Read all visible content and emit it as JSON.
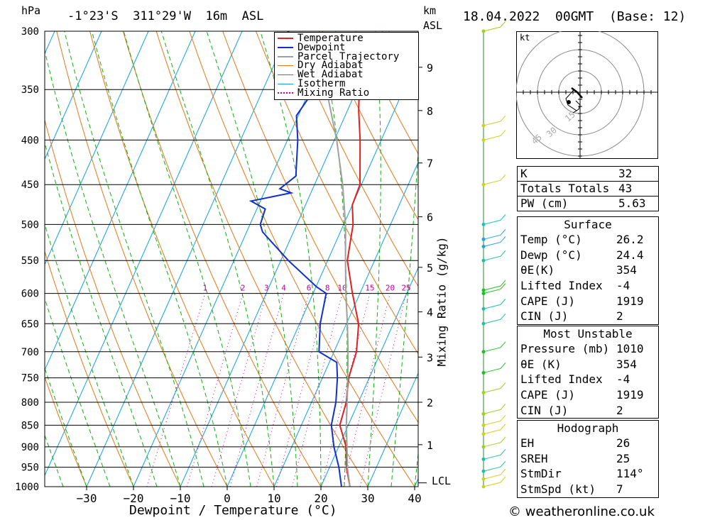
{
  "header": {
    "hpa_label": "hPa",
    "location": "-1°23'S  311°29'W  16m  ASL",
    "km_label": "km",
    "asl_label": "ASL",
    "date": "18.04.2022  00GMT  (Base: 12)"
  },
  "legend": [
    "Temperature",
    "Dewpoint",
    "Parcel Trajectory",
    "Dry Adiabat",
    "Wet Adiabat",
    "Isotherm",
    "Mixing Ratio"
  ],
  "colors": {
    "temperature": "#e02020",
    "dewpoint": "#1030d0",
    "parcel": "#a0a0a0",
    "dry_adiabat": "#e07818",
    "wet_adiabat": "#10b010",
    "isotherm": "#10a0e0",
    "mixing_ratio": "#c000a0"
  },
  "chart_data": {
    "type": "line",
    "title": "",
    "xlabel": "Dewpoint / Temperature (°C)",
    "ylabel": "hPa",
    "right_label": "Mixing Ratio (g/kg)",
    "xlim": [
      -40,
      40
    ],
    "ylim": [
      1000,
      300
    ],
    "pressure_ticks": [
      "300",
      "350",
      "400",
      "450",
      "500",
      "550",
      "600",
      "650",
      "700",
      "750",
      "800",
      "850",
      "900",
      "950",
      "1000"
    ],
    "temperature_ticks": [
      "-30",
      "-20",
      "-10",
      "0",
      "10",
      "20",
      "30",
      "40"
    ],
    "km_ticks": [
      {
        "label": "9",
        "p": 330
      },
      {
        "label": "8",
        "p": 370
      },
      {
        "label": "7",
        "p": 425
      },
      {
        "label": "6",
        "p": 490
      },
      {
        "label": "5",
        "p": 560
      },
      {
        "label": "4",
        "p": 630
      },
      {
        "label": "3",
        "p": 710
      },
      {
        "label": "2",
        "p": 800
      },
      {
        "label": "1",
        "p": 895
      }
    ],
    "lcl_label": "LCL",
    "lcl_pressure": 990,
    "mixing_ratio_labels": [
      "1",
      "2",
      "3",
      "4",
      "6",
      "8",
      "10",
      "15",
      "20",
      "25"
    ],
    "series": [
      {
        "name": "Temperature",
        "points": [
          [
            1000,
            26.2
          ],
          [
            950,
            23.6
          ],
          [
            900,
            21.6
          ],
          [
            850,
            18.2
          ],
          [
            800,
            17.4
          ],
          [
            750,
            15.6
          ],
          [
            700,
            14.8
          ],
          [
            650,
            12.6
          ],
          [
            600,
            8.4
          ],
          [
            550,
            4.2
          ],
          [
            500,
            2.0
          ],
          [
            475,
            0.0
          ],
          [
            450,
            -0.3
          ],
          [
            400,
            -4.5
          ],
          [
            370,
            -7.6
          ],
          [
            355,
            -9.0
          ]
        ]
      },
      {
        "name": "Dewpoint",
        "points": [
          [
            1000,
            24.4
          ],
          [
            950,
            22.0
          ],
          [
            900,
            19.0
          ],
          [
            850,
            16.4
          ],
          [
            800,
            15.2
          ],
          [
            750,
            13.2
          ],
          [
            720,
            11.6
          ],
          [
            700,
            6.8
          ],
          [
            650,
            4.4
          ],
          [
            600,
            2.8
          ],
          [
            590,
            0.2
          ],
          [
            550,
            -8.4
          ],
          [
            510,
            -16.6
          ],
          [
            500,
            -17.8
          ],
          [
            480,
            -18.2
          ],
          [
            470,
            -22.0
          ],
          [
            460,
            -14.2
          ],
          [
            455,
            -17.0
          ],
          [
            440,
            -14.8
          ],
          [
            400,
            -17.8
          ],
          [
            375,
            -20.4
          ],
          [
            360,
            -19.6
          ],
          [
            345,
            -24.2
          ],
          [
            330,
            -27.8
          ],
          [
            320,
            -25.6
          ],
          [
            310,
            -29.2
          ],
          [
            300,
            -30.2
          ]
        ]
      },
      {
        "name": "Parcel Trajectory",
        "points": [
          [
            1000,
            26.2
          ],
          [
            950,
            23.8
          ],
          [
            900,
            21.8
          ],
          [
            850,
            19.6
          ],
          [
            800,
            17.6
          ],
          [
            750,
            15.4
          ],
          [
            700,
            13.0
          ],
          [
            650,
            10.2
          ],
          [
            600,
            7.0
          ],
          [
            550,
            3.8
          ],
          [
            500,
            0.4
          ],
          [
            450,
            -4.0
          ],
          [
            400,
            -9.5
          ],
          [
            360,
            -15.0
          ]
        ]
      }
    ]
  },
  "hodograph": {
    "unit_label": "kt",
    "ring_labels": [
      "15",
      "30",
      "45"
    ]
  },
  "indices": {
    "top": [
      {
        "label": "K",
        "value": "32"
      },
      {
        "label": "Totals Totals",
        "value": "43"
      },
      {
        "label": "PW (cm)",
        "value": "5.63"
      }
    ],
    "surface": {
      "title": "Surface",
      "rows": [
        {
          "label": "Temp (°C)",
          "value": "26.2"
        },
        {
          "label": "Dewp (°C)",
          "value": "24.4"
        },
        {
          "label": "θE(K)",
          "value": "354"
        },
        {
          "label": "Lifted Index",
          "value": "-4"
        },
        {
          "label": "CAPE (J)",
          "value": "1919"
        },
        {
          "label": "CIN (J)",
          "value": "2"
        }
      ]
    },
    "unstable": {
      "title": "Most Unstable",
      "rows": [
        {
          "label": "Pressure (mb)",
          "value": "1010"
        },
        {
          "label": "θE (K)",
          "value": "354"
        },
        {
          "label": "Lifted Index",
          "value": "-4"
        },
        {
          "label": "CAPE (J)",
          "value": "1919"
        },
        {
          "label": "CIN (J)",
          "value": "2"
        }
      ]
    },
    "hodograph": {
      "title": "Hodograph",
      "rows": [
        {
          "label": "EH",
          "value": "26"
        },
        {
          "label": "SREH",
          "value": "25"
        },
        {
          "label": "StmDir",
          "value": "114°"
        },
        {
          "label": "StmSpd (kt)",
          "value": "7"
        }
      ]
    }
  },
  "footer": "© weatheronline.co.uk"
}
